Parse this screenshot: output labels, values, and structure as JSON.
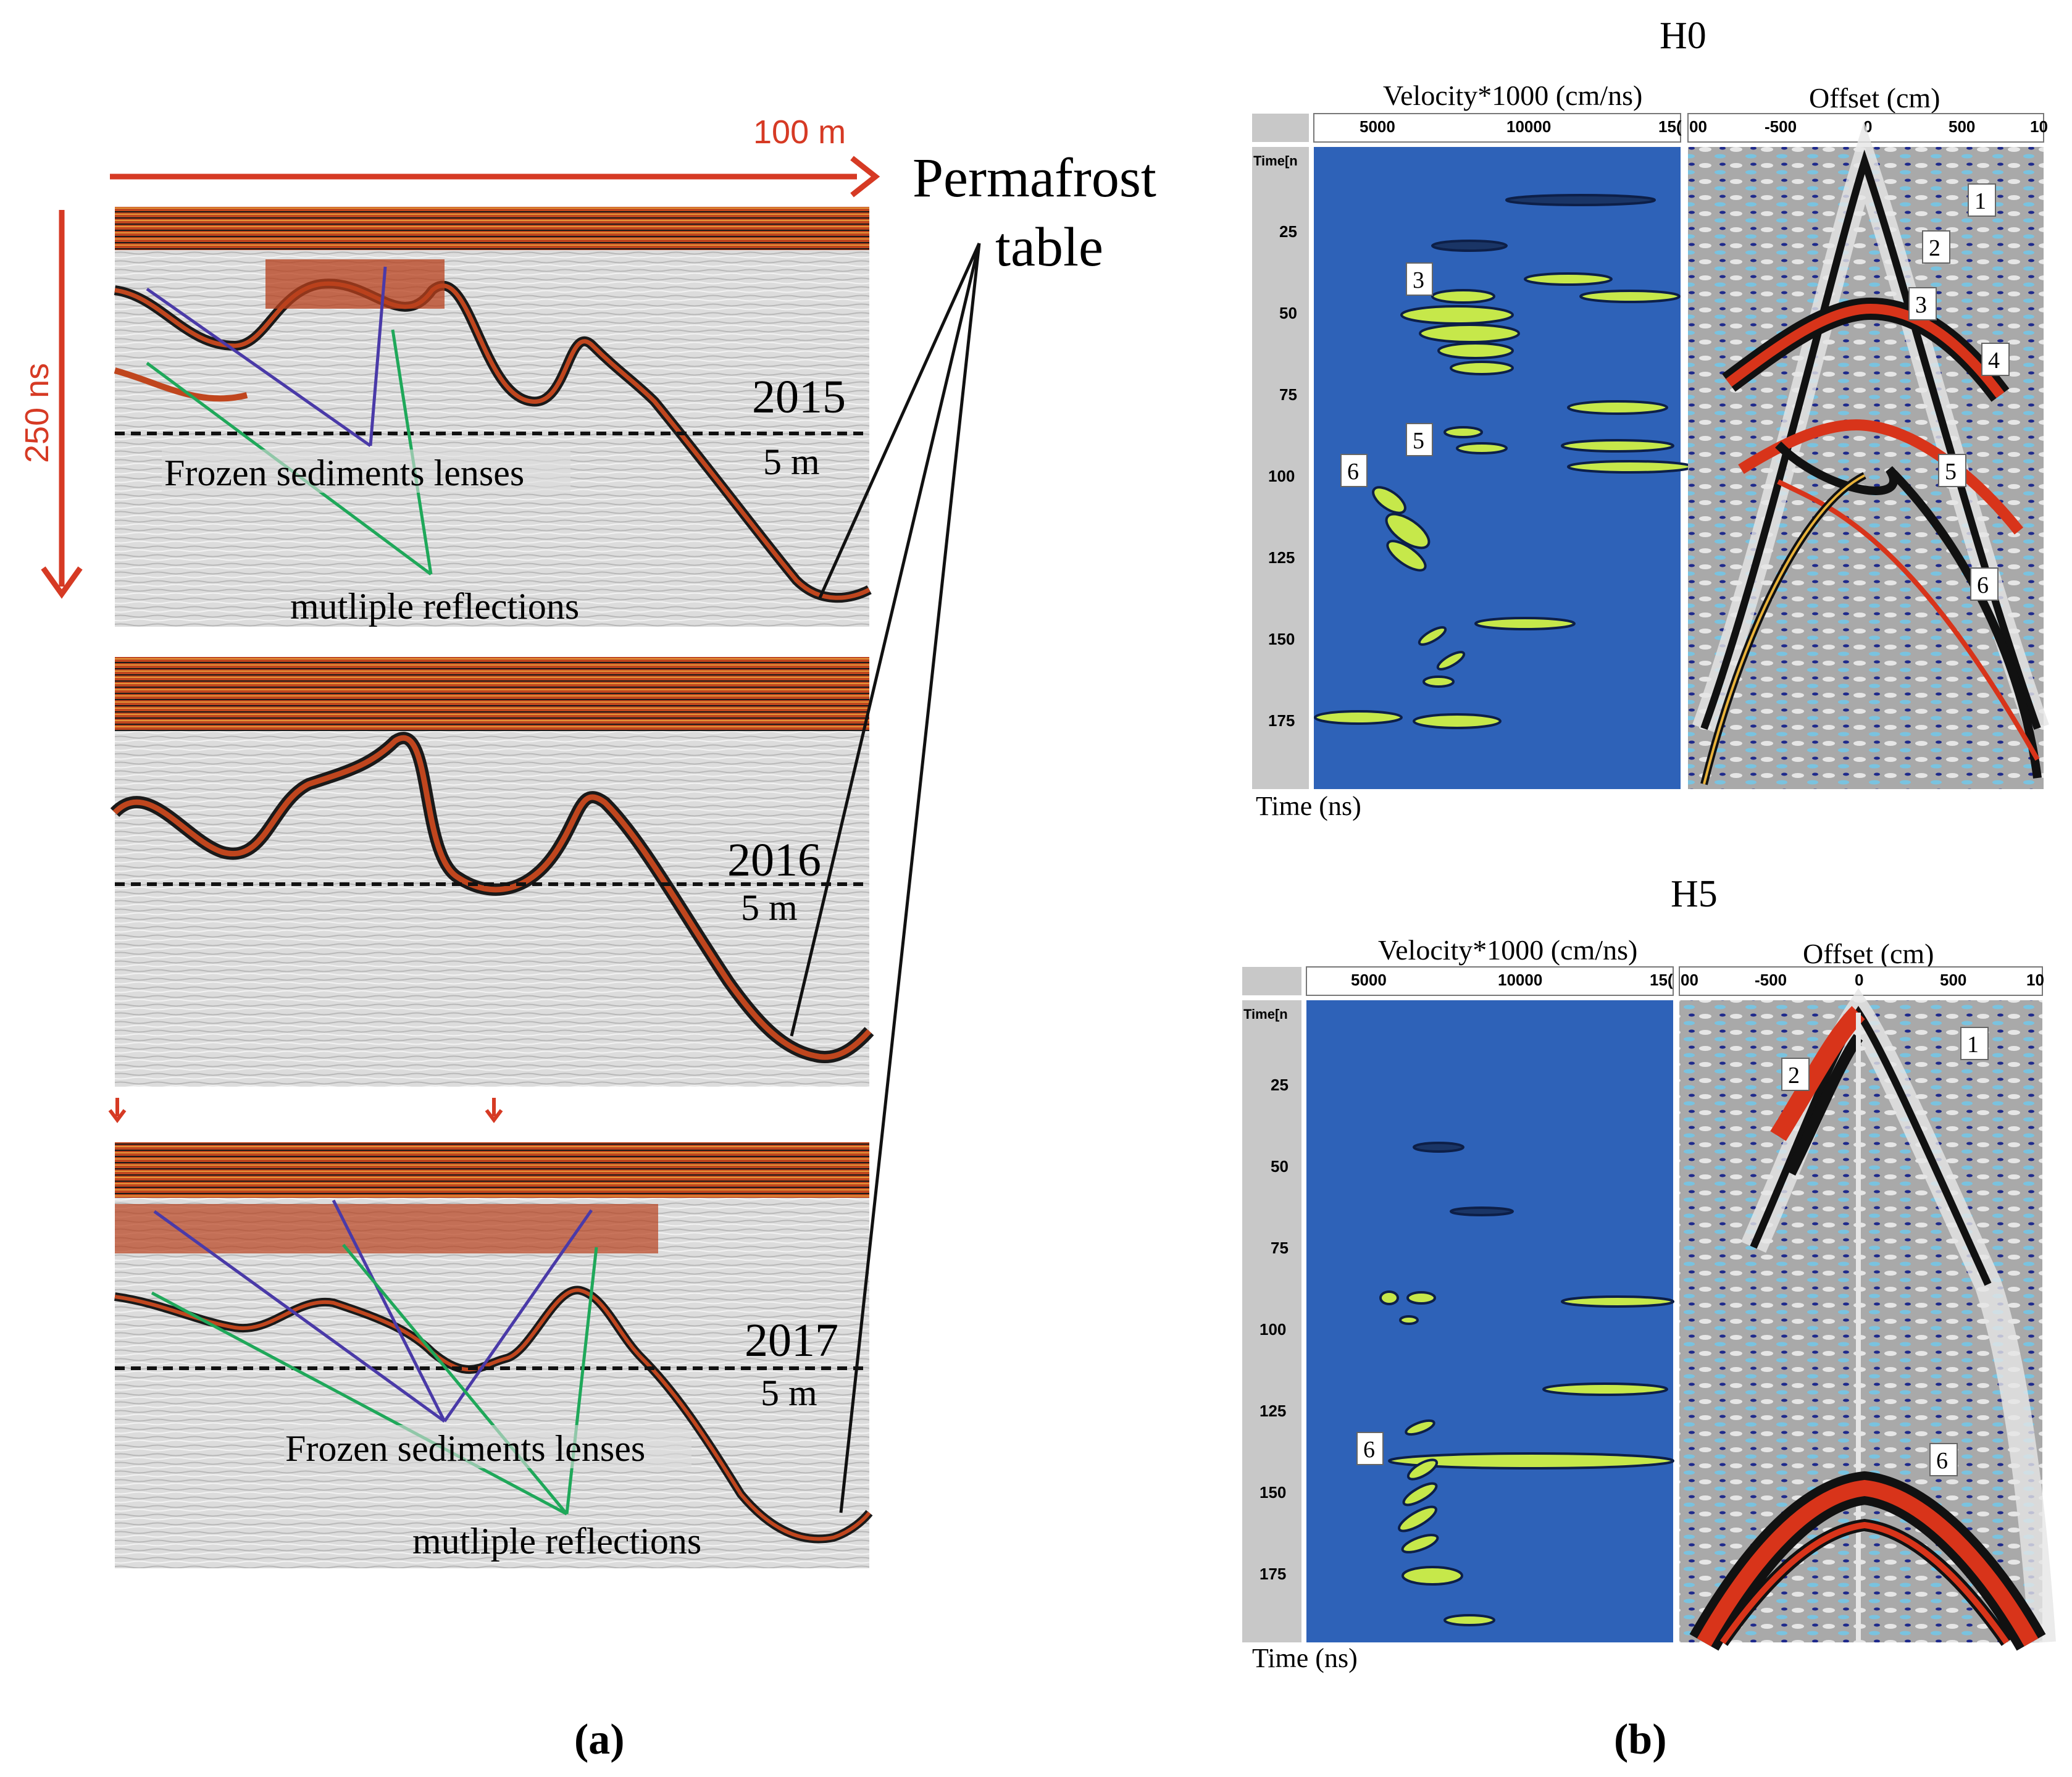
{
  "panel_a": {
    "top_scale": "100 m",
    "side_scale": "250 ns",
    "permafrost_label_line1": "Permafrost",
    "permafrost_label_line2": "table",
    "profiles": [
      {
        "year": "2015",
        "depth_label": "5 m"
      },
      {
        "year": "2016",
        "depth_label": "5 m"
      },
      {
        "year": "2017",
        "depth_label": "5 m"
      }
    ],
    "frozen_lenses_label": "Frozen sediments lenses",
    "multiple_reflections_label": "mutliple reflections",
    "caption": "(a)"
  },
  "panel_b": {
    "caption": "(b)",
    "blocks": [
      {
        "title": "H0",
        "velocity_axis_title": "Velocity*1000 (cm/ns)",
        "velocity_ticks": [
          "5000",
          "10000",
          "15("
        ],
        "offset_axis_title": "Offset (cm)",
        "offset_ticks": [
          "00",
          "-500",
          "0",
          "500",
          "10"
        ],
        "time_axis_header": "Time[n",
        "time_ticks": [
          "25",
          "50",
          "75",
          "100",
          "125",
          "150",
          "175"
        ],
        "time_axis_label": "Time (ns)",
        "velocity_markers": [
          "3",
          "5",
          "6"
        ],
        "offset_markers": [
          "1",
          "2",
          "3",
          "4",
          "5",
          "6"
        ]
      },
      {
        "title": "H5",
        "velocity_axis_title": "Velocity*1000 (cm/ns)",
        "velocity_ticks": [
          "5000",
          "10000",
          "15("
        ],
        "offset_axis_title": "Offset (cm)",
        "offset_ticks": [
          "00",
          "-500",
          "0",
          "500",
          "10"
        ],
        "time_axis_header": "Time[n",
        "time_ticks": [
          "25",
          "50",
          "75",
          "100",
          "125",
          "150",
          "175"
        ],
        "time_axis_label": "Time (ns)",
        "velocity_markers": [
          "6"
        ],
        "offset_markers": [
          "1",
          "2",
          "6"
        ]
      }
    ]
  },
  "colors": {
    "arrow_red": "#d63a24",
    "lens_line": "#4a3aa8",
    "multiple_line": "#1fa85a",
    "semblance_blue": "#2e62b8"
  }
}
